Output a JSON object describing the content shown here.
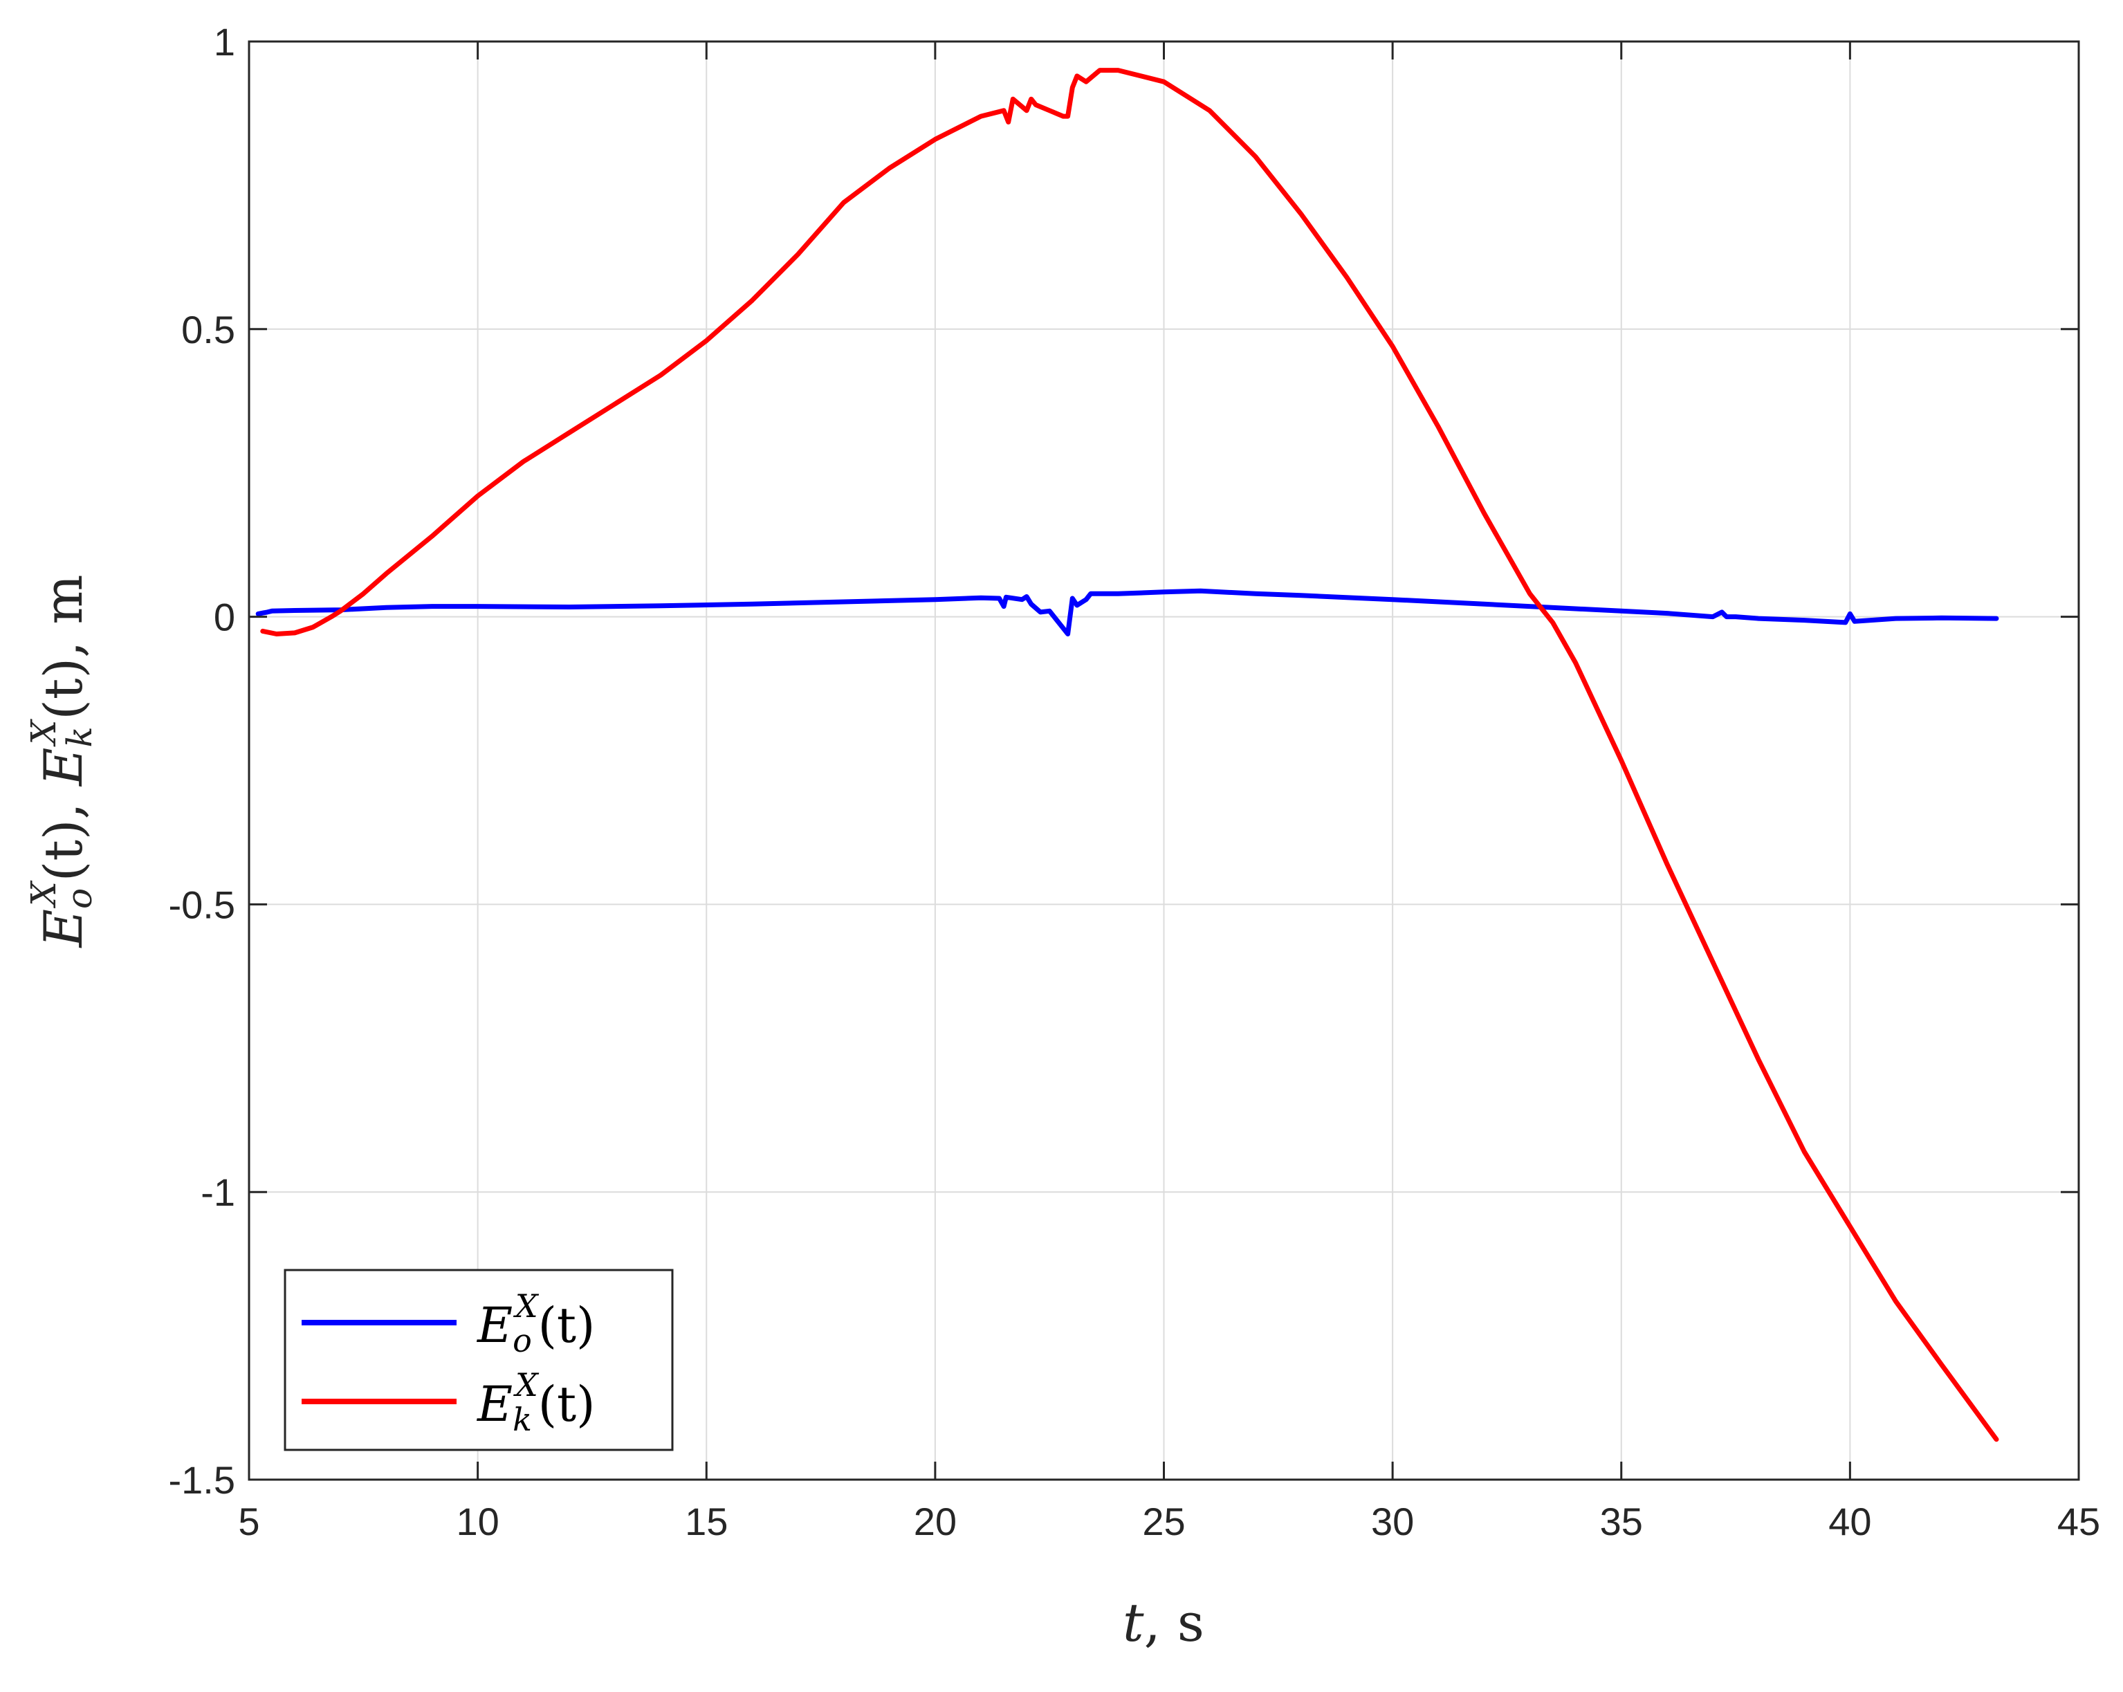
{
  "chart_data": {
    "type": "line",
    "title": "",
    "xlabel": {
      "var": "t",
      "unit": "s"
    },
    "ylabel": {
      "parts": [
        {
          "base": "E",
          "sub": "o",
          "sup": "X",
          "arg": "(t)"
        },
        {
          "base": "E",
          "sub": "k",
          "sup": "X",
          "arg": "(t)"
        }
      ],
      "unit": "m"
    },
    "xlim": [
      5,
      45
    ],
    "ylim": [
      -1.5,
      1
    ],
    "xticks": [
      5,
      10,
      15,
      20,
      25,
      30,
      35,
      40,
      45
    ],
    "xtick_labels": [
      "5",
      "10",
      "15",
      "20",
      "25",
      "30",
      "35",
      "40",
      "45"
    ],
    "yticks": [
      -1.5,
      -1,
      -0.5,
      0,
      0.5,
      1
    ],
    "ytick_labels": [
      "-1.5",
      "-1",
      "-0.5",
      "0",
      "0.5",
      "1"
    ],
    "grid": true,
    "legend": {
      "location": "bottom-left"
    },
    "series": [
      {
        "name": {
          "base": "E",
          "sub": "o",
          "sup": "X",
          "arg": "(t)"
        },
        "color": "#0000ff",
        "x": [
          5.2,
          5.4,
          5.5,
          6,
          7,
          8,
          9,
          10,
          12,
          14,
          16,
          18,
          20,
          21,
          21.4,
          21.5,
          21.55,
          21.9,
          22,
          22.1,
          22.3,
          22.5,
          22.9,
          23.0,
          23.1,
          23.3,
          23.4,
          24,
          25,
          25.8,
          27,
          28,
          30,
          32,
          34,
          35,
          36,
          37,
          37.2,
          37.3,
          37.5,
          38,
          39,
          39.9,
          40.0,
          40.1,
          41,
          42,
          43.2
        ],
        "y": [
          0.005,
          0.008,
          0.01,
          0.011,
          0.012,
          0.016,
          0.018,
          0.018,
          0.017,
          0.019,
          0.022,
          0.026,
          0.03,
          0.033,
          0.032,
          0.018,
          0.034,
          0.03,
          0.035,
          0.022,
          0.008,
          0.01,
          -0.03,
          0.032,
          0.02,
          0.03,
          0.04,
          0.04,
          0.043,
          0.045,
          0.04,
          0.037,
          0.03,
          0.022,
          0.014,
          0.01,
          0.006,
          0.0,
          0.008,
          0.0,
          0.0,
          -0.003,
          -0.006,
          -0.01,
          0.005,
          -0.008,
          -0.003,
          -0.002,
          -0.003
        ]
      },
      {
        "name": {
          "base": "E",
          "sub": "k",
          "sup": "X",
          "arg": "(t)"
        },
        "color": "#ff0000",
        "x": [
          5.3,
          5.6,
          6,
          6.4,
          6.8,
          7,
          7.5,
          8,
          9,
          10,
          11,
          12,
          13,
          14,
          15,
          16,
          17,
          18,
          19,
          20,
          21,
          21.5,
          21.6,
          21.7,
          22,
          22.1,
          22.2,
          22.5,
          22.8,
          22.9,
          23.0,
          23.1,
          23.3,
          23.6,
          24,
          25,
          26,
          27,
          28,
          29,
          30,
          31,
          32,
          33,
          33.5,
          34,
          35,
          36,
          37,
          38,
          39,
          40,
          41,
          42,
          43.2
        ],
        "y": [
          -0.025,
          -0.03,
          -0.028,
          -0.018,
          0.0,
          0.01,
          0.04,
          0.075,
          0.14,
          0.21,
          0.27,
          0.32,
          0.37,
          0.42,
          0.48,
          0.55,
          0.63,
          0.72,
          0.78,
          0.83,
          0.87,
          0.88,
          0.86,
          0.9,
          0.88,
          0.9,
          0.89,
          0.88,
          0.87,
          0.87,
          0.92,
          0.94,
          0.93,
          0.95,
          0.95,
          0.93,
          0.88,
          0.8,
          0.7,
          0.59,
          0.47,
          0.33,
          0.18,
          0.04,
          -0.01,
          -0.08,
          -0.25,
          -0.43,
          -0.6,
          -0.77,
          -0.93,
          -1.06,
          -1.19,
          -1.3,
          -1.43
        ]
      }
    ]
  }
}
